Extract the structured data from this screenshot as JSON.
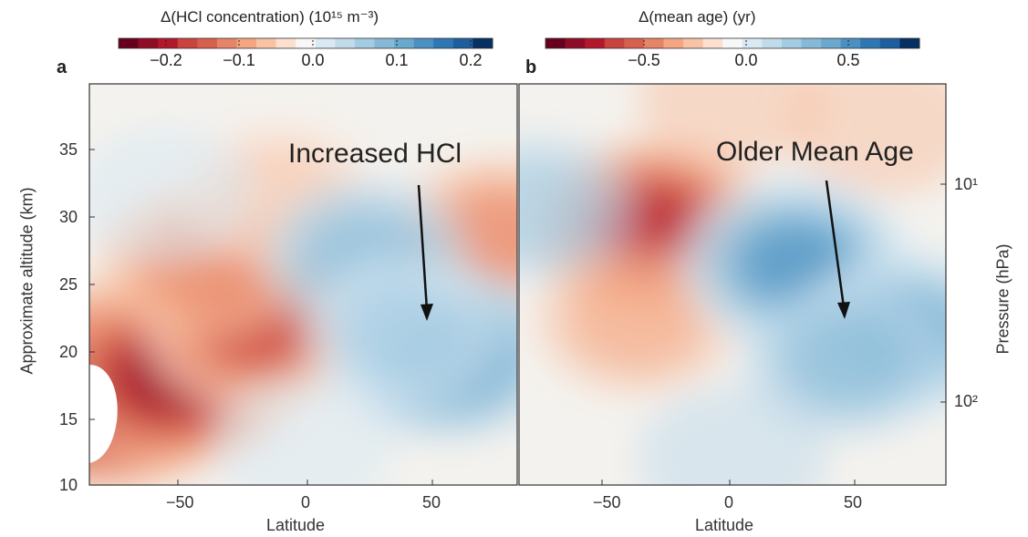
{
  "chart_data": [
    {
      "panel": "a",
      "type": "heatmap",
      "colorbar_title": "Δ(HCl concentration) (10¹⁵ m⁻³)",
      "colorbar_ticks": [
        "−0.2",
        "−0.1",
        "0.0",
        "0.1",
        "0.2"
      ],
      "colorbar_range": [
        -0.24,
        0.24
      ],
      "xlabel": "Latitude",
      "xticks": [
        "−50",
        "0",
        "50"
      ],
      "xlim": [
        -85,
        85
      ],
      "ylabel": "Approximate altitude (km)",
      "yticks": [
        "10",
        "15",
        "20",
        "25",
        "30",
        "35"
      ],
      "ylim": [
        10,
        39
      ],
      "annotation": "Increased HCl",
      "features": [
        {
          "lat": -78,
          "alt": 17,
          "value": -0.24
        },
        {
          "lat": -52,
          "alt": 18,
          "value": -0.19
        },
        {
          "lat": -18,
          "alt": 21.5,
          "value": -0.15
        },
        {
          "lat": -40,
          "alt": 26,
          "value": -0.08
        },
        {
          "lat": -10,
          "alt": 31,
          "value": -0.04
        },
        {
          "lat": 78,
          "alt": 28,
          "value": -0.08
        },
        {
          "lat": 57,
          "alt": 19.5,
          "value": 0.14
        },
        {
          "lat": 25,
          "alt": 26.5,
          "value": 0.08
        },
        {
          "lat": 40,
          "alt": 21,
          "value": 0.07
        },
        {
          "lat": -55,
          "alt": 31,
          "value": 0.02
        },
        {
          "lat": 0,
          "alt": 13,
          "value": 0.02
        }
      ]
    },
    {
      "panel": "b",
      "type": "heatmap",
      "colorbar_title": "Δ(mean age) (yr)",
      "colorbar_ticks": [
        "−0.5",
        "0.0",
        "0.5"
      ],
      "colorbar_range": [
        -0.9,
        0.9
      ],
      "xlabel": "Latitude",
      "xticks": [
        "−50",
        "0",
        "50"
      ],
      "xlim": [
        -85,
        85
      ],
      "ylabel": "Pressure (hPa)",
      "yticks_right": [
        "10¹",
        "10²"
      ],
      "annotation": "Older Mean Age",
      "features": [
        {
          "lat": -32,
          "alt": 28.5,
          "value": -0.6
        },
        {
          "lat": -38,
          "alt": 22,
          "value": -0.2
        },
        {
          "lat": 60,
          "alt": 36,
          "value": -0.12
        },
        {
          "lat": 0,
          "alt": 38,
          "value": -0.1
        },
        {
          "lat": 25,
          "alt": 26,
          "value": 0.55
        },
        {
          "lat": 70,
          "alt": 21,
          "value": 0.45
        },
        {
          "lat": 45,
          "alt": 19,
          "value": 0.3
        },
        {
          "lat": -78,
          "alt": 30,
          "value": 0.2
        },
        {
          "lat": 0,
          "alt": 12,
          "value": 0.12
        }
      ]
    }
  ]
}
